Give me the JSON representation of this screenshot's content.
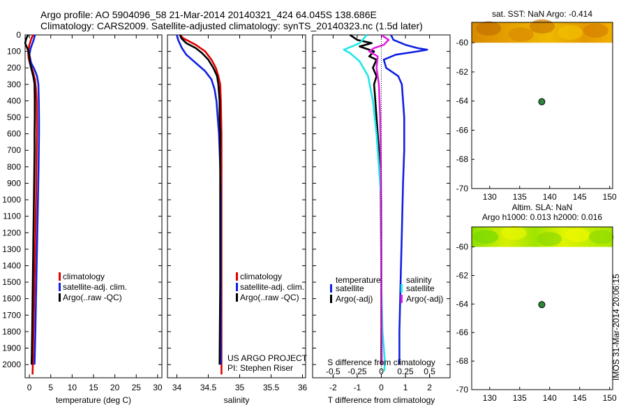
{
  "header": {
    "line1": "Argo profile: AO 5904096_58 21-Mar-2014 20140321_424 64.045S 138.686E",
    "line2": "Climatology: CARS2009. Satellite-adjusted climatology: synTS_20140323.nc (1.5d later)"
  },
  "side_stamp": "IMOS 31-Mar-2014 20:06:15",
  "colors": {
    "climatology": "#e00000",
    "satellite": "#1020e0",
    "argo": "#000000",
    "argo_adj_s": "#e020e0",
    "satellite_s": "#20e8e8"
  },
  "chart_data": [
    {
      "id": "temperature",
      "type": "line",
      "xlabel": "temperature (deg C)",
      "ylabel": "",
      "xlim": [
        -1,
        31
      ],
      "ylim": [
        2080,
        0
      ],
      "x_ticks": [
        0,
        5,
        10,
        15,
        20,
        25,
        30
      ],
      "x_tick_labels": [
        "0",
        "5",
        "10",
        "15",
        "20",
        "25",
        "30"
      ],
      "y_ticks": [
        0,
        100,
        200,
        300,
        400,
        500,
        600,
        700,
        800,
        900,
        1000,
        1100,
        1200,
        1300,
        1400,
        1500,
        1600,
        1700,
        1800,
        1900,
        2000
      ],
      "legend": [
        "climatology",
        "satellite-adj. clim.",
        "Argo(..raw -QC)"
      ],
      "series": [
        {
          "name": "climatology",
          "color": "#e00000",
          "points": [
            [
              0.9,
              0
            ],
            [
              0.5,
              20
            ],
            [
              0.0,
              60
            ],
            [
              -0.3,
              100
            ],
            [
              -0.2,
              140
            ],
            [
              0.2,
              180
            ],
            [
              0.8,
              220
            ],
            [
              1.3,
              270
            ],
            [
              1.55,
              330
            ],
            [
              1.7,
              400
            ],
            [
              1.75,
              500
            ],
            [
              1.75,
              600
            ],
            [
              1.7,
              700
            ],
            [
              1.65,
              800
            ],
            [
              1.55,
              1000
            ],
            [
              1.4,
              1200
            ],
            [
              1.25,
              1400
            ],
            [
              1.1,
              1600
            ],
            [
              0.95,
              1800
            ],
            [
              0.8,
              2000
            ],
            [
              0.75,
              2060
            ]
          ]
        },
        {
          "name": "satellite-adj. clim.",
          "color": "#1020e0",
          "points": [
            [
              1.3,
              0
            ],
            [
              1.0,
              30
            ],
            [
              0.3,
              80
            ],
            [
              0.0,
              120
            ],
            [
              0.4,
              170
            ],
            [
              1.2,
              210
            ],
            [
              1.8,
              250
            ],
            [
              2.1,
              300
            ],
            [
              2.2,
              400
            ],
            [
              2.25,
              500
            ],
            [
              2.25,
              600
            ],
            [
              2.2,
              700
            ],
            [
              2.15,
              800
            ],
            [
              2.0,
              1000
            ],
            [
              1.85,
              1200
            ],
            [
              1.7,
              1400
            ],
            [
              1.55,
              1600
            ],
            [
              1.4,
              1800
            ],
            [
              1.25,
              1950
            ],
            [
              1.2,
              2000
            ]
          ]
        },
        {
          "name": "Argo(..raw -QC)",
          "color": "#000000",
          "points": [
            [
              -0.3,
              0
            ],
            [
              -0.7,
              20
            ],
            [
              -1.0,
              50
            ],
            [
              -0.6,
              75
            ],
            [
              -0.2,
              100
            ],
            [
              0.0,
              130
            ],
            [
              0.1,
              160
            ],
            [
              0.3,
              190
            ],
            [
              0.6,
              220
            ],
            [
              0.9,
              250
            ],
            [
              1.1,
              280
            ],
            [
              1.2,
              300
            ],
            [
              1.25,
              400
            ],
            [
              1.25,
              500
            ],
            [
              1.2,
              600
            ],
            [
              1.2,
              700
            ],
            [
              1.15,
              800
            ],
            [
              1.05,
              1000
            ],
            [
              0.95,
              1200
            ],
            [
              0.85,
              1400
            ],
            [
              0.75,
              1600
            ],
            [
              0.65,
              1800
            ],
            [
              0.55,
              1950
            ],
            [
              0.5,
              2000
            ]
          ]
        }
      ]
    },
    {
      "id": "salinity",
      "type": "line",
      "xlabel": "salinity",
      "ylabel": "",
      "xlim": [
        33.85,
        36.05
      ],
      "ylim": [
        2080,
        0
      ],
      "x_ticks": [
        34,
        34.5,
        35,
        35.5,
        36
      ],
      "x_tick_labels": [
        "34",
        "34.5",
        "35",
        "35.5",
        "36"
      ],
      "legend": [
        "climatology",
        "satellite-adj. clim.",
        "Argo(..raw -QC)"
      ],
      "annotations": [
        "US ARGO PROJECT",
        "PI: Stephen Riser"
      ],
      "series": [
        {
          "name": "climatology",
          "color": "#e00000",
          "points": [
            [
              34.05,
              0
            ],
            [
              34.1,
              20
            ],
            [
              34.3,
              60
            ],
            [
              34.45,
              100
            ],
            [
              34.55,
              150
            ],
            [
              34.62,
              200
            ],
            [
              34.66,
              250
            ],
            [
              34.69,
              300
            ],
            [
              34.7,
              400
            ],
            [
              34.71,
              600
            ],
            [
              34.71,
              800
            ],
            [
              34.71,
              1000
            ],
            [
              34.71,
              1500
            ],
            [
              34.71,
              2000
            ],
            [
              34.71,
              2060
            ]
          ]
        },
        {
          "name": "satellite-adj. clim.",
          "color": "#1020e0",
          "points": [
            [
              34.0,
              0
            ],
            [
              34.02,
              30
            ],
            [
              34.08,
              80
            ],
            [
              34.15,
              120
            ],
            [
              34.3,
              170
            ],
            [
              34.45,
              220
            ],
            [
              34.55,
              270
            ],
            [
              34.6,
              330
            ],
            [
              34.63,
              400
            ],
            [
              34.65,
              500
            ],
            [
              34.67,
              600
            ],
            [
              34.69,
              800
            ],
            [
              34.7,
              1000
            ],
            [
              34.7,
              1500
            ],
            [
              34.7,
              2000
            ]
          ]
        },
        {
          "name": "Argo(..raw -QC)",
          "color": "#000000",
          "points": [
            [
              34.05,
              0
            ],
            [
              34.07,
              20
            ],
            [
              34.15,
              50
            ],
            [
              34.3,
              80
            ],
            [
              34.4,
              110
            ],
            [
              34.5,
              150
            ],
            [
              34.58,
              200
            ],
            [
              34.64,
              250
            ],
            [
              34.66,
              300
            ],
            [
              34.68,
              400
            ],
            [
              34.68,
              500
            ],
            [
              34.69,
              600
            ],
            [
              34.69,
              800
            ],
            [
              34.69,
              1000
            ],
            [
              34.69,
              1500
            ],
            [
              34.68,
              2000
            ]
          ]
        }
      ]
    },
    {
      "id": "difference",
      "type": "line",
      "xlabel": "T difference from climatology",
      "x2label": "S difference from climatology",
      "ylabel": "",
      "xlim": [
        -2.85,
        2.85
      ],
      "ylim": [
        2080,
        0
      ],
      "x_ticks": [
        -2,
        -1,
        0,
        1,
        2
      ],
      "x_tick_labels": [
        "-2",
        "-1",
        "0",
        "1",
        "2"
      ],
      "x2_ticks": [
        -0.5,
        -0.25,
        0,
        0.25,
        0.5
      ],
      "x2_tick_labels": [
        "-0.5",
        "-0.25",
        "0",
        "0.25",
        "0.5"
      ],
      "legend_left_title": "temperature",
      "legend_left": [
        "satellite",
        "Argo(-adj)"
      ],
      "legend_right_title": "salinity",
      "legend_right": [
        "satellite",
        "Argo(-adj)"
      ],
      "series": [
        {
          "name": "temperature satellite",
          "color": "#1020e0",
          "points": [
            [
              0.4,
              0
            ],
            [
              0.5,
              30
            ],
            [
              1.0,
              60
            ],
            [
              1.5,
              80
            ],
            [
              1.9,
              90
            ],
            [
              1.5,
              100
            ],
            [
              0.6,
              120
            ],
            [
              0.1,
              150
            ],
            [
              0.2,
              200
            ],
            [
              0.7,
              250
            ],
            [
              0.85,
              300
            ],
            [
              0.9,
              400
            ],
            [
              0.95,
              500
            ],
            [
              0.95,
              700
            ],
            [
              0.9,
              900
            ],
            [
              0.85,
              1200
            ],
            [
              0.8,
              1500
            ],
            [
              0.75,
              1800
            ],
            [
              0.75,
              2000
            ]
          ]
        },
        {
          "name": "temperature Argo(-adj)",
          "color": "#000000",
          "points": [
            [
              -1.3,
              0
            ],
            [
              -1.0,
              30
            ],
            [
              -0.4,
              50
            ],
            [
              -0.9,
              70
            ],
            [
              -0.3,
              100
            ],
            [
              -0.5,
              130
            ],
            [
              -0.2,
              150
            ],
            [
              -0.35,
              200
            ],
            [
              -0.2,
              250
            ],
            [
              -0.3,
              300
            ],
            [
              -0.25,
              400
            ],
            [
              -0.2,
              500
            ],
            [
              -0.15,
              600
            ],
            [
              -0.1,
              700
            ],
            [
              -0.05,
              850
            ],
            [
              -0.02,
              1000
            ],
            [
              0.0,
              1500
            ],
            [
              0.0,
              2000
            ]
          ]
        },
        {
          "name": "salinity satellite",
          "color": "#20e8e8",
          "points": [
            [
              -0.6,
              0
            ],
            [
              -0.9,
              50
            ],
            [
              -1.55,
              90
            ],
            [
              -1.3,
              110
            ],
            [
              -0.9,
              160
            ],
            [
              -0.55,
              250
            ],
            [
              -0.35,
              400
            ],
            [
              -0.2,
              600
            ],
            [
              -0.1,
              800
            ],
            [
              0.0,
              1000
            ],
            [
              0.0,
              1500
            ],
            [
              0.05,
              1800
            ],
            [
              0.15,
              1990
            ],
            [
              0.12,
              2040
            ]
          ]
        },
        {
          "name": "salinity Argo(-adj)",
          "color": "#e020e0",
          "points": [
            [
              0.0,
              0
            ],
            [
              0.3,
              30
            ],
            [
              0.1,
              60
            ],
            [
              -0.3,
              80
            ],
            [
              -0.5,
              100
            ],
            [
              -0.15,
              130
            ],
            [
              -0.2,
              200
            ],
            [
              -0.1,
              300
            ],
            [
              -0.05,
              500
            ],
            [
              -0.02,
              800
            ],
            [
              0.0,
              1200
            ],
            [
              0.0,
              1600
            ],
            [
              0.02,
              2000
            ]
          ]
        }
      ]
    },
    {
      "id": "sst_map",
      "type": "heatmap",
      "title": "sat. SST: NaN Argo: -0.414",
      "xlim": [
        127,
        150.5
      ],
      "ylim": [
        -70,
        -58.6
      ],
      "x_ticks": [
        130,
        135,
        140,
        145,
        150
      ],
      "x_tick_labels": [
        "130",
        "135",
        "140",
        "145",
        "150"
      ],
      "y_ticks": [
        -60,
        -62,
        -64,
        -66,
        -68,
        -70
      ],
      "y_tick_labels": [
        "-60",
        "-62",
        "-64",
        "-66",
        "-68",
        "-70"
      ],
      "data_band_lat": [
        -60,
        -58.6
      ],
      "marker": {
        "lon": 138.686,
        "lat": -64.045
      }
    },
    {
      "id": "sla_map",
      "type": "heatmap",
      "title": "Altim. SLA: NaN",
      "subtitle": "Argo h1000: 0.013 h2000: 0.016",
      "xlim": [
        127,
        150.5
      ],
      "ylim": [
        -70,
        -58.6
      ],
      "x_ticks": [
        130,
        135,
        140,
        145,
        150
      ],
      "x_tick_labels": [
        "130",
        "135",
        "140",
        "145",
        "150"
      ],
      "y_ticks": [
        -60,
        -62,
        -64,
        -66,
        -68,
        -70
      ],
      "y_tick_labels": [
        "-60",
        "-62",
        "-64",
        "-66",
        "-68",
        "-70"
      ],
      "data_band_lat": [
        -60,
        -58.6
      ],
      "marker": {
        "lon": 138.686,
        "lat": -64.045
      }
    }
  ]
}
